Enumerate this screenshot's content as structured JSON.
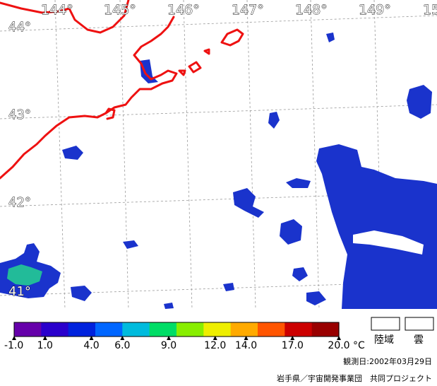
{
  "map": {
    "longitude_labels": [
      "144°",
      "145°",
      "146°",
      "147°",
      "148°",
      "149°",
      "15"
    ],
    "latitude_labels": [
      "44°",
      "43°",
      "42°",
      "41°"
    ]
  },
  "colorbar": {
    "ticks": [
      "-1.0",
      "1.0",
      "4.0",
      "6.0",
      "9.0",
      "12.0",
      "14.0",
      "17.0",
      "20.0"
    ],
    "unit": "°C",
    "colors": [
      "#6600aa",
      "#2a00cc",
      "#0022dd",
      "#0066ff",
      "#00bbdd",
      "#00dd66",
      "#88ee00",
      "#eeee00",
      "#ffaa00",
      "#ff5500",
      "#cc0000",
      "#990000"
    ]
  },
  "legend": {
    "land_label": "陸域",
    "cloud_label": "雲"
  },
  "footer": {
    "observation_date": "観測日:2002年03月29日",
    "credit": "岩手県／宇宙開発事業団　共同プロジェクト"
  },
  "colors": {
    "coastline": "#ee1111",
    "sea_cold": "#1a33cc",
    "sea_mid": "#22bb99"
  }
}
